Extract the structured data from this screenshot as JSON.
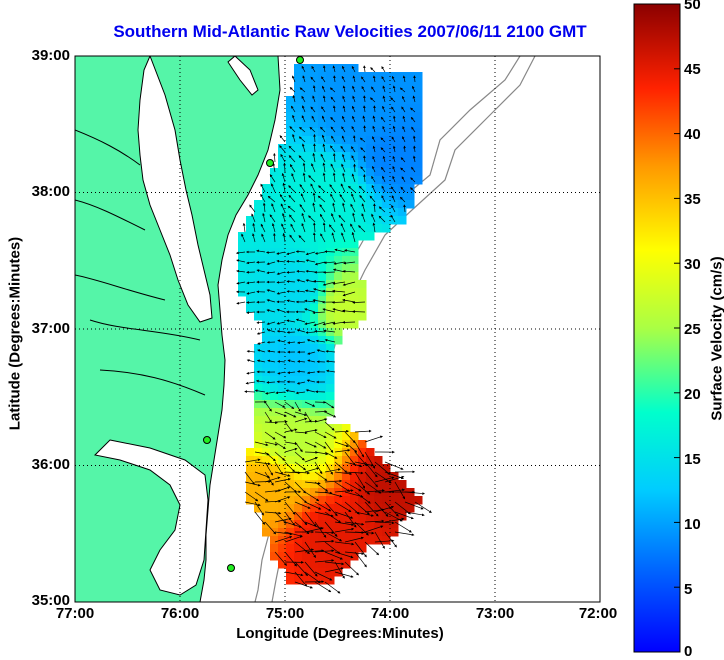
{
  "chart_data": {
    "type": "map",
    "title": "Southern Mid-Atlantic Raw Velocities 2007/06/11 2100 GMT",
    "xlabel": "Longitude (Degrees:Minutes)",
    "ylabel": "Latitude (Degrees:Minutes)",
    "x_ticks": [
      "77:00",
      "76:00",
      "75:00",
      "74:00",
      "73:00",
      "72:00"
    ],
    "y_ticks": [
      "39:00",
      "38:00",
      "37:00",
      "36:00",
      "35:00"
    ],
    "colorbar": {
      "label": "Surface Velocity (cm/s)",
      "ticks": [
        "50",
        "45",
        "40",
        "35",
        "30",
        "25",
        "20",
        "15",
        "10",
        "5",
        "0"
      ],
      "range": [
        0,
        50
      ],
      "colormap": "jet"
    },
    "lon_range": [
      -77,
      -72
    ],
    "lat_range": [
      35,
      39
    ],
    "grid": true,
    "velocity_regions": [
      {
        "lon": -74.3,
        "lat": 38.6,
        "speed": 9
      },
      {
        "lon": -74.0,
        "lat": 38.3,
        "speed": 8
      },
      {
        "lon": -74.6,
        "lat": 38.0,
        "speed": 17
      },
      {
        "lon": -74.9,
        "lat": 37.3,
        "speed": 14
      },
      {
        "lon": -74.5,
        "lat": 37.2,
        "speed": 27
      },
      {
        "lon": -74.9,
        "lat": 36.8,
        "speed": 12
      },
      {
        "lon": -75.0,
        "lat": 36.2,
        "speed": 26
      },
      {
        "lon": -74.0,
        "lat": 35.9,
        "speed": 47
      },
      {
        "lon": -74.6,
        "lat": 35.5,
        "speed": 45
      },
      {
        "lon": -75.2,
        "lat": 35.9,
        "speed": 36
      }
    ]
  },
  "colors": {
    "land": "#55f5a8",
    "title": "#0000ee",
    "coast": "#000000",
    "bathymetry": "#888888"
  }
}
